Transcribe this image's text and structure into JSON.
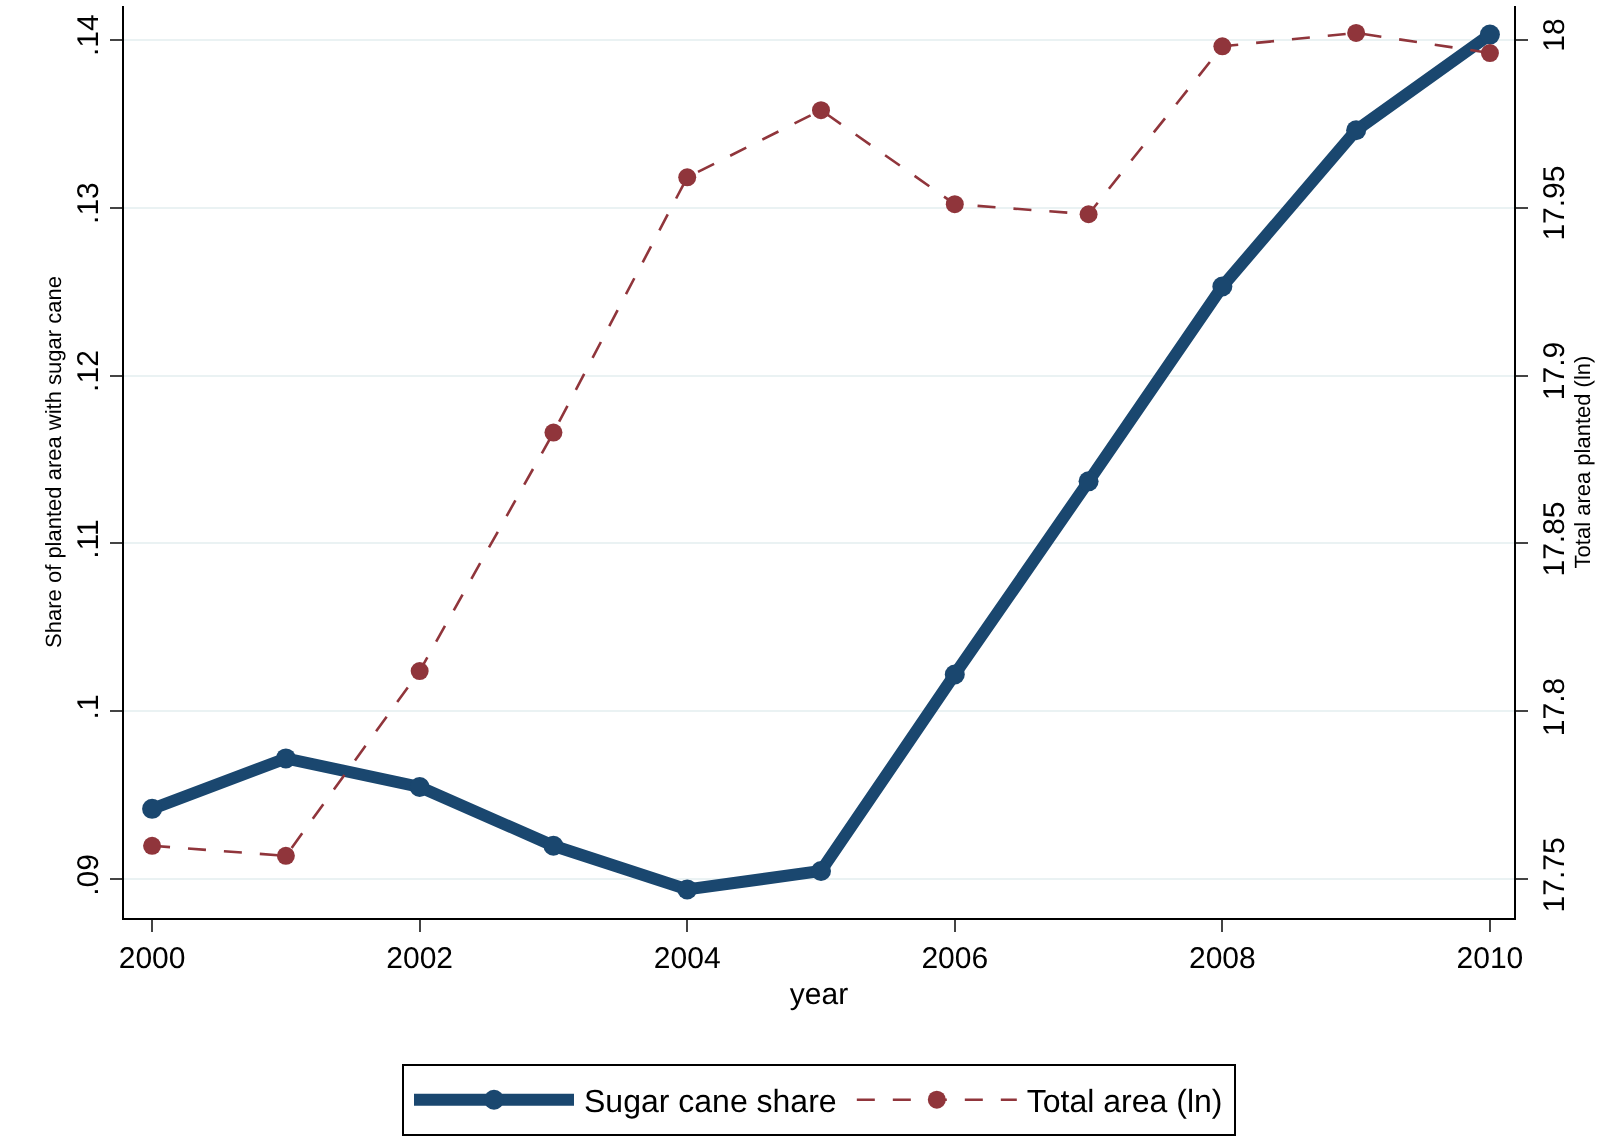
{
  "chart_data": {
    "type": "line",
    "x": [
      2000,
      2001,
      2002,
      2003,
      2004,
      2005,
      2006,
      2007,
      2008,
      2009,
      2010
    ],
    "series": [
      {
        "name": "Sugar cane share",
        "color": "#1a476f",
        "line_style": "solid",
        "values": [
          0.0942,
          0.0972,
          0.0955,
          0.092,
          0.0894,
          0.0905,
          0.1022,
          0.1137,
          0.1253,
          0.1346,
          0.1403
        ]
      },
      {
        "name": "Total area (ln)",
        "color": "#90353b",
        "line_style": "dashed",
        "axis": "y2",
        "values": [
          17.76,
          17.757,
          17.812,
          17.883,
          17.959,
          17.979,
          17.951,
          17.948,
          17.998,
          18.002,
          17.996
        ]
      }
    ],
    "xlabel": "year",
    "ylabel": "Share of planted area with sugar cane",
    "y2label": "Total area planted (ln)",
    "xlim": [
      1999.79,
      2010.18
    ],
    "xticks": [
      2000,
      2002,
      2004,
      2006,
      2008,
      2010
    ],
    "ylim": [
      0.0877,
      0.142
    ],
    "yticks": [
      {
        "value": 0.09,
        "label": ".09"
      },
      {
        "value": 0.1,
        "label": ".1"
      },
      {
        "value": 0.11,
        "label": ".11"
      },
      {
        "value": 0.12,
        "label": ".12"
      },
      {
        "value": 0.13,
        "label": ".13"
      },
      {
        "value": 0.14,
        "label": ".14"
      }
    ],
    "y2lim": [
      17.7385,
      18.01
    ],
    "y2ticks": [
      17.75,
      17.8,
      17.85,
      17.9,
      17.95,
      18
    ],
    "grid": "y",
    "legend": "bottom",
    "marker": "circle"
  }
}
